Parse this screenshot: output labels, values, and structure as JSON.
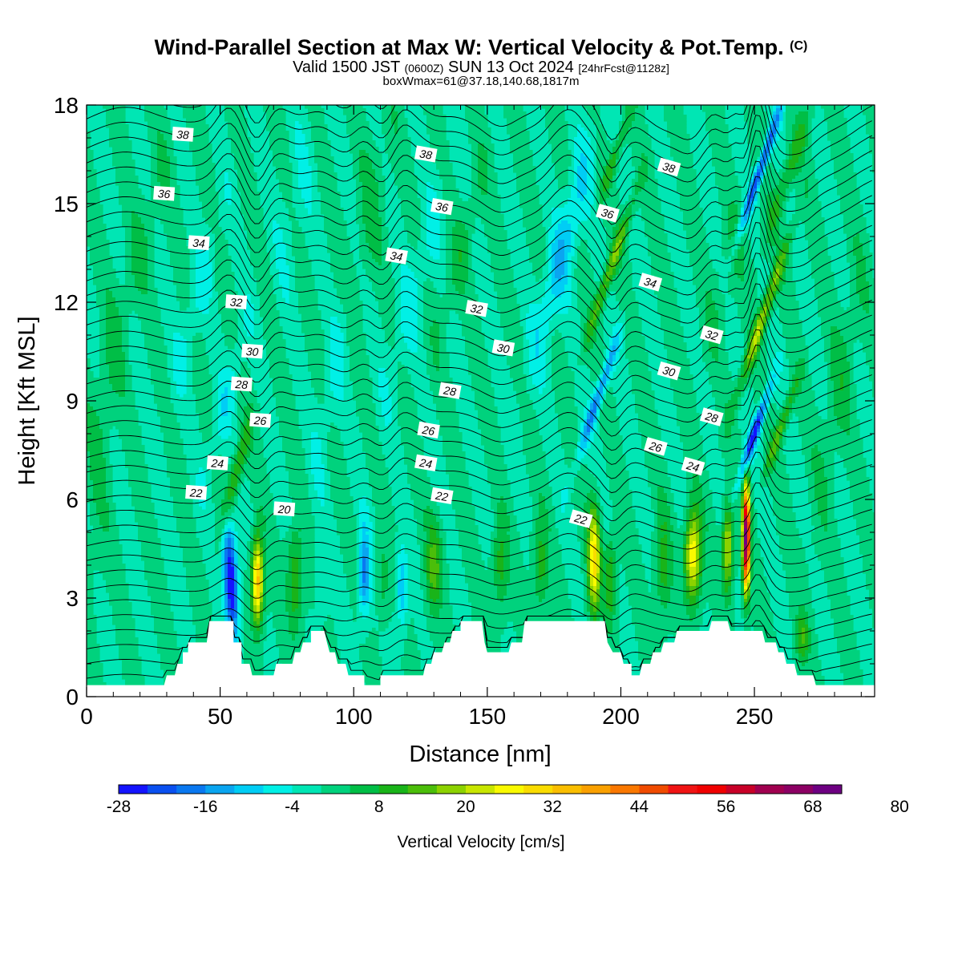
{
  "title": {
    "main": "Wind-Parallel Section at Max W: Vertical Velocity & Pot.Temp.",
    "copyright": "(C)",
    "valid_prefix": "Valid 1500 JST",
    "valid_utc": "(0600Z)",
    "valid_date": "SUN 13 Oct 2024",
    "forecast": "[24hrFcst@1128z]",
    "box": "boxWmax=61@37.18,140.68,1817m"
  },
  "chart_data": {
    "type": "heatmap",
    "xlabel": "Distance [nm]",
    "ylabel": "Height [Kft MSL]",
    "xlim": [
      0,
      295
    ],
    "ylim": [
      0,
      18
    ],
    "xticks": [
      0,
      50,
      100,
      150,
      200,
      250
    ],
    "yticks": [
      0,
      3,
      6,
      9,
      12,
      15,
      18
    ],
    "colorbar": {
      "label": "Vertical Velocity [cm/s]",
      "min": -28,
      "step": 4,
      "ticks": [
        -28,
        -16,
        -4,
        8,
        20,
        32,
        44,
        56,
        68,
        80
      ],
      "colors": [
        "#1414ff",
        "#0a50f0",
        "#0a78f0",
        "#0aa5f0",
        "#00cdf5",
        "#00f0e6",
        "#00e6b4",
        "#00d27d",
        "#00be46",
        "#19b419",
        "#4bbe0a",
        "#8cd200",
        "#c8e600",
        "#fafa00",
        "#fadc00",
        "#fabe00",
        "#faa000",
        "#fa7800",
        "#f04b00",
        "#f01414",
        "#f00000",
        "#c80028",
        "#a00050",
        "#8c0064",
        "#6e0082"
      ]
    },
    "contour_variable": "Potential Temperature",
    "contour_labels": [
      {
        "text": "38",
        "x": 36,
        "y": 17.1
      },
      {
        "text": "38",
        "x": 127,
        "y": 16.5
      },
      {
        "text": "38",
        "x": 218,
        "y": 16.1
      },
      {
        "text": "36",
        "x": 29,
        "y": 15.3
      },
      {
        "text": "36",
        "x": 133,
        "y": 14.9
      },
      {
        "text": "36",
        "x": 195,
        "y": 14.7
      },
      {
        "text": "34",
        "x": 42,
        "y": 13.8
      },
      {
        "text": "34",
        "x": 116,
        "y": 13.4
      },
      {
        "text": "34",
        "x": 211,
        "y": 12.6
      },
      {
        "text": "32",
        "x": 56,
        "y": 12.0
      },
      {
        "text": "32",
        "x": 146,
        "y": 11.8
      },
      {
        "text": "32",
        "x": 234,
        "y": 11.0
      },
      {
        "text": "30",
        "x": 62,
        "y": 10.5
      },
      {
        "text": "30",
        "x": 156,
        "y": 10.6
      },
      {
        "text": "30",
        "x": 218,
        "y": 9.9
      },
      {
        "text": "28",
        "x": 58,
        "y": 9.5
      },
      {
        "text": "28",
        "x": 136,
        "y": 9.3
      },
      {
        "text": "28",
        "x": 234,
        "y": 8.5
      },
      {
        "text": "26",
        "x": 65,
        "y": 8.4
      },
      {
        "text": "26",
        "x": 128,
        "y": 8.1
      },
      {
        "text": "26",
        "x": 213,
        "y": 7.6
      },
      {
        "text": "24",
        "x": 49,
        "y": 7.1
      },
      {
        "text": "24",
        "x": 127,
        "y": 7.1
      },
      {
        "text": "24",
        "x": 227,
        "y": 7.0
      },
      {
        "text": "22",
        "x": 41,
        "y": 6.2
      },
      {
        "text": "22",
        "x": 133,
        "y": 6.1
      },
      {
        "text": "22",
        "x": 185,
        "y": 5.4
      },
      {
        "text": "20",
        "x": 74,
        "y": 5.7
      }
    ],
    "terrain_kft": [
      [
        0,
        0.35
      ],
      [
        29,
        0.35
      ],
      [
        30,
        0.65
      ],
      [
        33,
        0.65
      ],
      [
        34,
        1.0
      ],
      [
        36,
        1.0
      ],
      [
        36,
        1.35
      ],
      [
        38,
        1.35
      ],
      [
        38,
        1.65
      ],
      [
        45,
        1.65
      ],
      [
        46,
        2.3
      ],
      [
        55,
        2.3
      ],
      [
        55,
        1.65
      ],
      [
        58,
        1.65
      ],
      [
        58,
        1.0
      ],
      [
        61,
        1.0
      ],
      [
        62,
        0.65
      ],
      [
        70,
        0.65
      ],
      [
        71,
        1.0
      ],
      [
        77,
        1.0
      ],
      [
        78,
        1.35
      ],
      [
        80,
        1.35
      ],
      [
        81,
        1.65
      ],
      [
        84,
        1.65
      ],
      [
        84,
        2.0
      ],
      [
        89,
        2.0
      ],
      [
        90,
        1.65
      ],
      [
        91,
        1.35
      ],
      [
        93,
        1.35
      ],
      [
        94,
        1.0
      ],
      [
        97,
        1.0
      ],
      [
        98,
        0.65
      ],
      [
        104,
        0.65
      ],
      [
        104,
        0.35
      ],
      [
        110,
        0.35
      ],
      [
        110,
        0.65
      ],
      [
        126,
        0.65
      ],
      [
        127,
        1.0
      ],
      [
        129,
        1.0
      ],
      [
        130,
        1.35
      ],
      [
        133,
        1.35
      ],
      [
        134,
        1.65
      ],
      [
        136,
        1.65
      ],
      [
        137,
        2.0
      ],
      [
        140,
        2.0
      ],
      [
        140,
        2.3
      ],
      [
        148,
        2.3
      ],
      [
        149,
        1.65
      ],
      [
        150,
        1.35
      ],
      [
        158,
        1.35
      ],
      [
        159,
        1.65
      ],
      [
        163,
        1.65
      ],
      [
        164,
        2.3
      ],
      [
        194,
        2.3
      ],
      [
        195,
        1.65
      ],
      [
        197,
        1.35
      ],
      [
        200,
        1.35
      ],
      [
        201,
        1.0
      ],
      [
        204,
        1.0
      ],
      [
        204,
        0.65
      ],
      [
        207,
        0.65
      ],
      [
        208,
        1.0
      ],
      [
        211,
        1.0
      ],
      [
        212,
        1.35
      ],
      [
        215,
        1.35
      ],
      [
        216,
        1.65
      ],
      [
        220,
        1.65
      ],
      [
        221,
        2.0
      ],
      [
        233,
        2.0
      ],
      [
        234,
        2.3
      ],
      [
        240,
        2.3
      ],
      [
        241,
        2.0
      ],
      [
        253,
        2.0
      ],
      [
        254,
        1.65
      ],
      [
        258,
        1.65
      ],
      [
        259,
        1.35
      ],
      [
        261,
        1.35
      ],
      [
        262,
        1.0
      ],
      [
        265,
        1.0
      ],
      [
        266,
        0.65
      ],
      [
        272,
        0.65
      ],
      [
        273,
        0.35
      ],
      [
        295,
        0.35
      ]
    ],
    "features": [
      {
        "x": 54,
        "z": 3.5,
        "sx": 2.5,
        "sz": 1.8,
        "w": -30,
        "tilt": -0.6
      },
      {
        "x": 64,
        "z": 3.5,
        "sx": 2.2,
        "sz": 1.3,
        "w": 34,
        "tilt": 0
      },
      {
        "x": 56,
        "z": 6.8,
        "sx": 2.5,
        "sz": 1.6,
        "w": 14,
        "tilt": 3
      },
      {
        "x": 52,
        "z": 9.0,
        "sx": 3.5,
        "sz": 2.5,
        "w": -6,
        "tilt": 3
      },
      {
        "x": 20,
        "z": 13.5,
        "sx": 5,
        "sz": 4,
        "w": 4,
        "tilt": 3
      },
      {
        "x": 41,
        "z": 12.0,
        "sx": 4,
        "sz": 3,
        "w": -5,
        "tilt": 3
      },
      {
        "x": 78,
        "z": 3.5,
        "sx": 3,
        "sz": 1.6,
        "w": 12,
        "tilt": 0
      },
      {
        "x": 93,
        "z": 10.0,
        "sx": 4,
        "sz": 3.5,
        "w": -5,
        "tilt": 2
      },
      {
        "x": 88,
        "z": 3.5,
        "sx": 2.5,
        "sz": 1.5,
        "w": -3,
        "tilt": 0
      },
      {
        "x": 104,
        "z": 3.8,
        "sx": 2.2,
        "sz": 1.3,
        "w": -18,
        "tilt": 0
      },
      {
        "x": 111,
        "z": 3.5,
        "sx": 2.2,
        "sz": 1.2,
        "w": 6,
        "tilt": 0
      },
      {
        "x": 118,
        "z": 3.3,
        "sx": 2,
        "sz": 1.2,
        "w": -12,
        "tilt": 0
      },
      {
        "x": 130,
        "z": 4.0,
        "sx": 3,
        "sz": 1.4,
        "w": 14,
        "tilt": 0
      },
      {
        "x": 123,
        "z": 12.5,
        "sx": 5,
        "sz": 3.5,
        "w": -5,
        "tilt": 3
      },
      {
        "x": 140,
        "z": 13.5,
        "sx": 4,
        "sz": 3,
        "w": 5,
        "tilt": 3
      },
      {
        "x": 155,
        "z": 4.0,
        "sx": 3,
        "sz": 1.4,
        "w": 10,
        "tilt": 0
      },
      {
        "x": 170,
        "z": 4.0,
        "sx": 3,
        "sz": 1.4,
        "w": 10,
        "tilt": 0
      },
      {
        "x": 178,
        "z": 13.5,
        "sx": 5,
        "sz": 3.5,
        "w": -11,
        "tilt": 3
      },
      {
        "x": 190,
        "z": 4.2,
        "sx": 2.3,
        "sz": 1.6,
        "w": 30,
        "tilt": 0
      },
      {
        "x": 196,
        "z": 3.5,
        "sx": 2.2,
        "sz": 1.4,
        "w": 12,
        "tilt": 0
      },
      {
        "x": 191,
        "z": 9.0,
        "sx": 2,
        "sz": 2,
        "w": -18,
        "tilt": 4
      },
      {
        "x": 196,
        "z": 13.0,
        "sx": 2.2,
        "sz": 2.3,
        "w": 16,
        "tilt": 4
      },
      {
        "x": 198,
        "z": 16.5,
        "sx": 2,
        "sz": 1.6,
        "w": 10,
        "tilt": 4
      },
      {
        "x": 216,
        "z": 4.0,
        "sx": 3,
        "sz": 1.6,
        "w": 10,
        "tilt": 0
      },
      {
        "x": 227,
        "z": 4.3,
        "sx": 3,
        "sz": 1.4,
        "w": 28,
        "tilt": 0
      },
      {
        "x": 240,
        "z": 4.6,
        "sx": 2,
        "sz": 1.4,
        "w": 22,
        "tilt": 0
      },
      {
        "x": 247,
        "z": 4.8,
        "sx": 1.3,
        "sz": 1.5,
        "w": 72,
        "tilt": 0
      },
      {
        "x": 250,
        "z": 8.0,
        "sx": 1.8,
        "sz": 1.5,
        "w": -26,
        "tilt": 4
      },
      {
        "x": 253,
        "z": 11.5,
        "sx": 2.2,
        "sz": 2.4,
        "w": 20,
        "tilt": 4
      },
      {
        "x": 252,
        "z": 16.0,
        "sx": 1.8,
        "sz": 2.2,
        "w": -24,
        "tilt": 4
      },
      {
        "x": 260,
        "z": 8.2,
        "sx": 2,
        "sz": 1.5,
        "w": 14,
        "tilt": 4
      },
      {
        "x": 263,
        "z": 16.0,
        "sx": 3,
        "sz": 2.3,
        "w": 10,
        "tilt": 4
      },
      {
        "x": 268,
        "z": 1.8,
        "sx": 2.5,
        "sz": 0.8,
        "w": 12,
        "tilt": 0
      },
      {
        "x": 282,
        "z": 9.5,
        "sx": 5,
        "sz": 4,
        "w": 5,
        "tilt": 2
      },
      {
        "x": 240,
        "z": 13.0,
        "sx": 5,
        "sz": 3,
        "w": 4,
        "tilt": 3
      },
      {
        "x": 105,
        "z": 14.5,
        "sx": 6,
        "sz": 3,
        "w": 5,
        "tilt": 2
      },
      {
        "x": 78,
        "z": 15.0,
        "sx": 6,
        "sz": 3,
        "w": -3,
        "tilt": 2
      },
      {
        "x": 6,
        "z": 8.0,
        "sx": 5,
        "sz": 4,
        "w": 4,
        "tilt": 1
      }
    ]
  }
}
